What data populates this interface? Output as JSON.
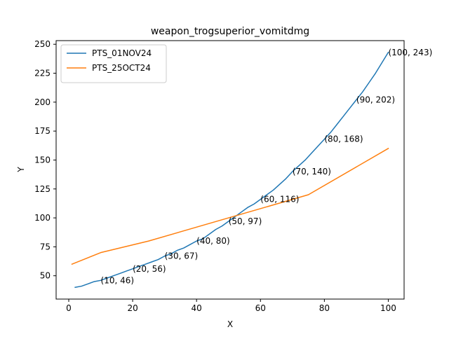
{
  "chart_data": {
    "type": "line",
    "title": "weapon_trogsuperior_vomitdmg",
    "xlabel": "X",
    "ylabel": "Y",
    "xlim": [
      -3.95,
      104.95
    ],
    "ylim": [
      29.85,
      253.15
    ],
    "x_ticks": [
      0,
      20,
      40,
      60,
      80,
      100
    ],
    "y_ticks": [
      50,
      75,
      100,
      125,
      150,
      175,
      200,
      225,
      250
    ],
    "grid": false,
    "legend": "top-left",
    "series": [
      {
        "name": "PTS_01NOV24",
        "color": "#1f77b4",
        "x": [
          2,
          4,
          6,
          8,
          10,
          12,
          14,
          16,
          18,
          20,
          22,
          24,
          26,
          28,
          30,
          32,
          34,
          36,
          38,
          40,
          42,
          44,
          46,
          48,
          50,
          52,
          54,
          56,
          58,
          60,
          62,
          64,
          66,
          68,
          70,
          72,
          74,
          76,
          78,
          80,
          82,
          84,
          86,
          88,
          90,
          92,
          94,
          96,
          98,
          100
        ],
        "y": [
          40,
          41,
          43,
          45,
          46,
          48,
          50,
          52,
          54,
          56,
          58,
          60,
          62,
          64,
          67,
          69,
          72,
          74,
          77,
          80,
          82,
          86,
          90,
          93,
          97,
          101,
          105,
          109,
          112,
          116,
          120,
          124,
          129,
          134,
          140,
          145,
          150,
          156,
          162,
          168,
          174,
          181,
          188,
          195,
          202,
          209,
          217,
          225,
          234,
          243
        ]
      },
      {
        "name": "PTS_25OCT24",
        "color": "#ff7f0e",
        "x": [
          1,
          10,
          25,
          50,
          75,
          100
        ],
        "y": [
          60,
          70,
          80,
          100,
          120,
          160
        ]
      }
    ],
    "annotations": [
      {
        "label": "(10, 46)",
        "x": 10,
        "y": 46
      },
      {
        "label": "(20, 56)",
        "x": 20,
        "y": 56
      },
      {
        "label": "(30, 67)",
        "x": 30,
        "y": 67
      },
      {
        "label": "(40, 80)",
        "x": 40,
        "y": 80
      },
      {
        "label": "(50, 97)",
        "x": 50,
        "y": 97
      },
      {
        "label": "(60, 116)",
        "x": 60,
        "y": 116
      },
      {
        "label": "(70, 140)",
        "x": 70,
        "y": 140
      },
      {
        "label": "(80, 168)",
        "x": 80,
        "y": 168
      },
      {
        "label": "(90, 202)",
        "x": 90,
        "y": 202
      },
      {
        "label": "(100, 243)",
        "x": 100,
        "y": 243
      }
    ]
  }
}
